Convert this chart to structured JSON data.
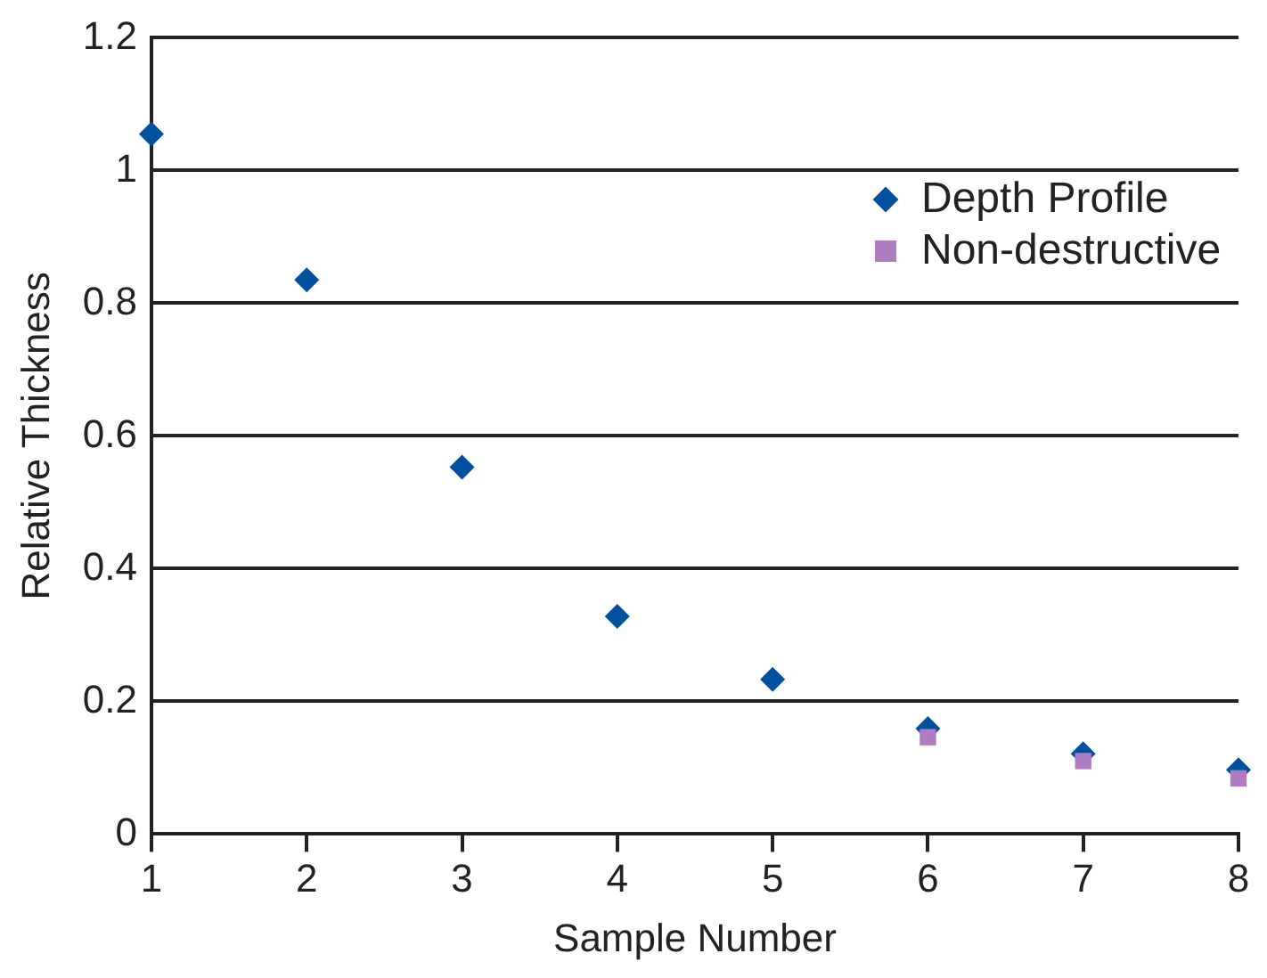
{
  "chart_data": {
    "type": "scatter",
    "xlabel": "Sample Number",
    "ylabel": "Relative Thickness",
    "xlim": [
      1,
      8
    ],
    "xticks": [
      1,
      2,
      3,
      4,
      5,
      6,
      7,
      8
    ],
    "ylim": [
      0,
      1.2
    ],
    "yticks": [
      0,
      0.2,
      0.4,
      0.6,
      0.8,
      1,
      1.2
    ],
    "grid": "y",
    "legend": "top right",
    "series": [
      {
        "name": "Depth Profile",
        "color": "#0050a0",
        "marker": "diamond",
        "x": [
          1,
          2,
          3,
          4,
          5,
          6,
          7,
          8
        ],
        "values": [
          1.055,
          0.835,
          0.553,
          0.328,
          0.233,
          0.159,
          0.121,
          0.097
        ]
      },
      {
        "name": "Non-destructive",
        "color": "#b07cc0",
        "marker": "square",
        "x": [
          6,
          7,
          8
        ],
        "values": [
          0.146,
          0.11,
          0.084
        ]
      }
    ]
  }
}
